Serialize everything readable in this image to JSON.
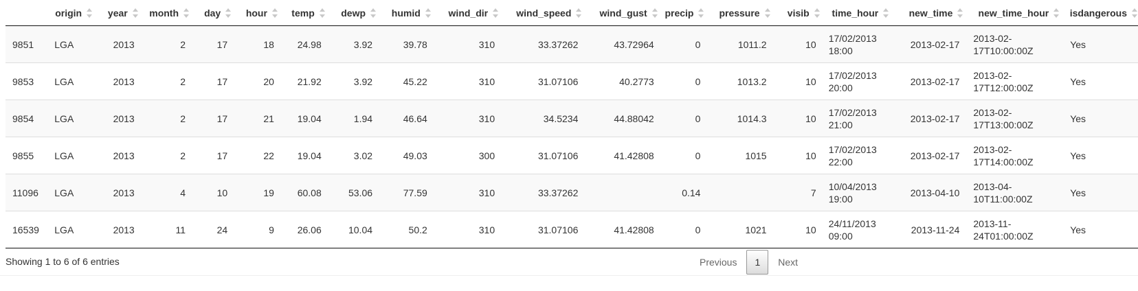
{
  "columns": [
    "",
    "origin",
    "year",
    "month",
    "day",
    "hour",
    "temp",
    "dewp",
    "humid",
    "wind_dir",
    "wind_speed",
    "wind_gust",
    "precip",
    "pressure",
    "visib",
    "time_hour",
    "new_time",
    "new_time_hour",
    "isdangerous"
  ],
  "rows": [
    [
      "9851",
      "LGA",
      "2013",
      "2",
      "17",
      "18",
      "24.98",
      "3.92",
      "39.78",
      "310",
      "33.37262",
      "43.72964",
      "0",
      "1011.2",
      "10",
      "17/02/2013 18:00",
      "2013-02-17",
      "2013-02-17T10:00:00Z",
      "Yes"
    ],
    [
      "9853",
      "LGA",
      "2013",
      "2",
      "17",
      "20",
      "21.92",
      "3.92",
      "45.22",
      "310",
      "31.07106",
      "40.2773",
      "0",
      "1013.2",
      "10",
      "17/02/2013 20:00",
      "2013-02-17",
      "2013-02-17T12:00:00Z",
      "Yes"
    ],
    [
      "9854",
      "LGA",
      "2013",
      "2",
      "17",
      "21",
      "19.04",
      "1.94",
      "46.64",
      "310",
      "34.5234",
      "44.88042",
      "0",
      "1014.3",
      "10",
      "17/02/2013 21:00",
      "2013-02-17",
      "2013-02-17T13:00:00Z",
      "Yes"
    ],
    [
      "9855",
      "LGA",
      "2013",
      "2",
      "17",
      "22",
      "19.04",
      "3.02",
      "49.03",
      "300",
      "31.07106",
      "41.42808",
      "0",
      "1015",
      "10",
      "17/02/2013 22:00",
      "2013-02-17",
      "2013-02-17T14:00:00Z",
      "Yes"
    ],
    [
      "11096",
      "LGA",
      "2013",
      "4",
      "10",
      "19",
      "60.08",
      "53.06",
      "77.59",
      "310",
      "33.37262",
      "",
      "0.14",
      "",
      "7",
      "10/04/2013 19:00",
      "2013-04-10",
      "2013-04-10T11:00:00Z",
      "Yes"
    ],
    [
      "16539",
      "LGA",
      "2013",
      "11",
      "24",
      "9",
      "26.06",
      "10.04",
      "50.2",
      "310",
      "31.07106",
      "41.42808",
      "0",
      "1021",
      "10",
      "24/11/2013 09:00",
      "2013-11-24",
      "2013-11-24T01:00:00Z",
      "Yes"
    ]
  ],
  "info": "Showing 1 to 6 of 6 entries",
  "pagination": {
    "previous": "Previous",
    "current_page": "1",
    "next": "Next"
  },
  "icons": {
    "sort": "sort-both-icon"
  },
  "colors": {
    "stripe": "#f9f9f9",
    "header_rule": "#111111",
    "row_rule": "#dddddd"
  }
}
